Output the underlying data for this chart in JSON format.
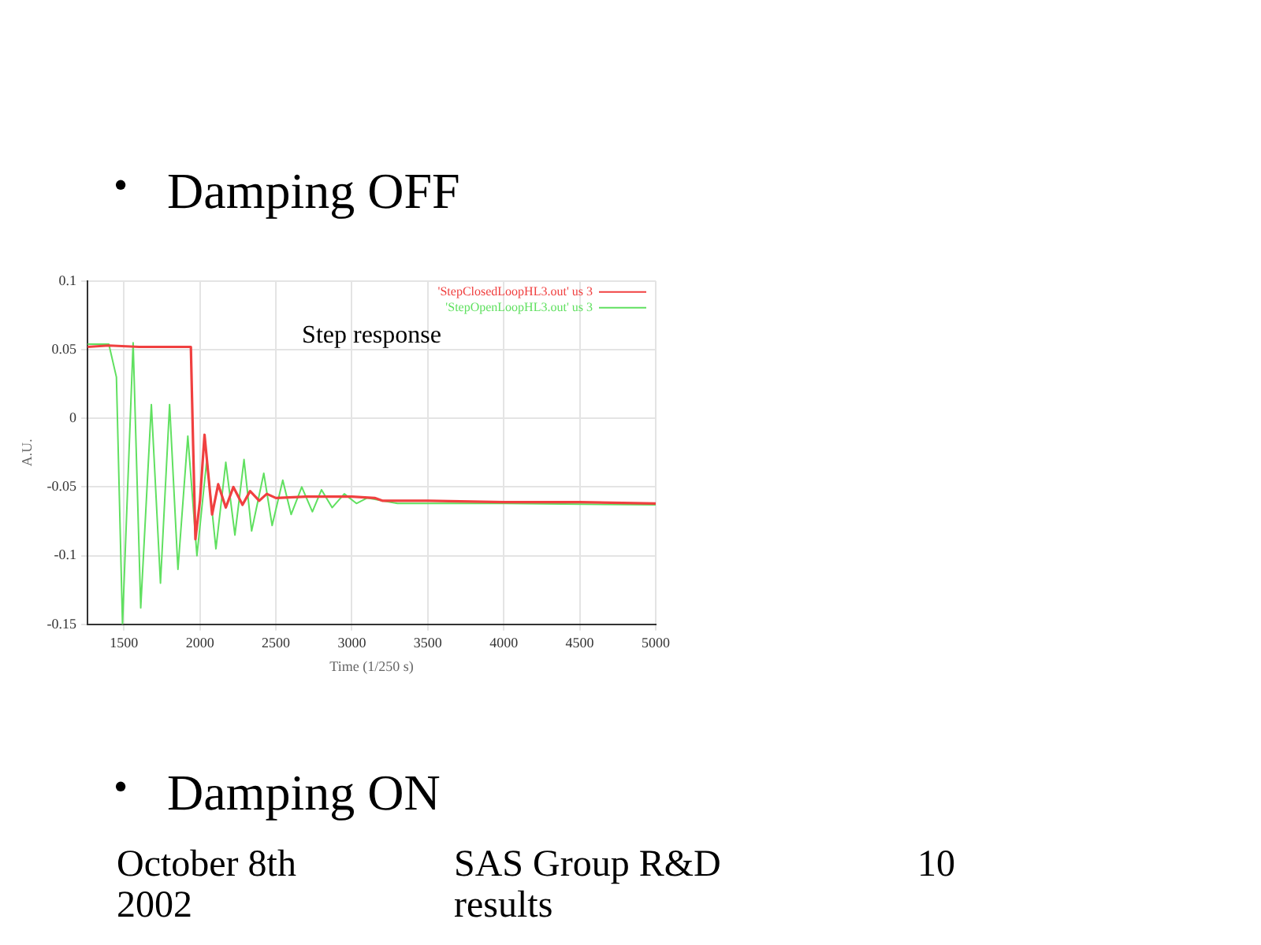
{
  "chart_data": {
    "type": "line",
    "title": "Step response",
    "xlabel": "Time (1/250 s)",
    "ylabel": "A.U.",
    "annotations": [
      "•",
      "Damping OFF",
      "•",
      "Damping ON",
      "October 8th 2002",
      "SAS Group R&D results",
      "10"
    ],
    "xlim": [
      1260,
      5000
    ],
    "xticks": [
      1500,
      2000,
      2500,
      3000,
      3500,
      4000,
      4500,
      5000
    ],
    "ylim": [
      -0.15,
      0.1
    ],
    "yticks": [
      -0.15,
      -0.1,
      -0.05,
      0,
      0.05,
      0.1
    ],
    "grid": true,
    "legend": "top right",
    "marker": "none",
    "line_style": "solid",
    "series": [
      {
        "name": "'StepClosedLoopHL3.out' us 3",
        "color": "#f04040",
        "x": [
          1260,
          1400,
          1600,
          1800,
          1940,
          1955,
          1970,
          2000,
          2030,
          2080,
          2120,
          2170,
          2220,
          2280,
          2330,
          2390,
          2440,
          2500,
          2700,
          3000,
          3150,
          3200,
          3500,
          4000,
          4500,
          5000
        ],
        "values": [
          0.052,
          0.053,
          0.052,
          0.052,
          0.052,
          -0.02,
          -0.088,
          -0.06,
          -0.012,
          -0.07,
          -0.048,
          -0.065,
          -0.05,
          -0.063,
          -0.053,
          -0.06,
          -0.055,
          -0.058,
          -0.057,
          -0.057,
          -0.058,
          -0.06,
          -0.06,
          -0.061,
          -0.061,
          -0.062
        ]
      },
      {
        "name": "'StepOpenLoopHL3.out' us 3",
        "color": "#60e060",
        "x": [
          1260,
          1400,
          1450,
          1490,
          1560,
          1610,
          1680,
          1740,
          1800,
          1855,
          1920,
          1980,
          2045,
          2105,
          2170,
          2230,
          2290,
          2340,
          2420,
          2475,
          2545,
          2600,
          2670,
          2740,
          2800,
          2870,
          2950,
          3030,
          3100,
          3300,
          4000,
          5000
        ],
        "values": [
          0.054,
          0.054,
          0.03,
          -0.15,
          0.055,
          -0.138,
          0.01,
          -0.12,
          0.01,
          -0.11,
          -0.013,
          -0.1,
          -0.03,
          -0.095,
          -0.032,
          -0.085,
          -0.03,
          -0.082,
          -0.04,
          -0.078,
          -0.045,
          -0.07,
          -0.05,
          -0.068,
          -0.052,
          -0.065,
          -0.055,
          -0.062,
          -0.058,
          -0.062,
          -0.062,
          -0.063
        ]
      }
    ]
  }
}
